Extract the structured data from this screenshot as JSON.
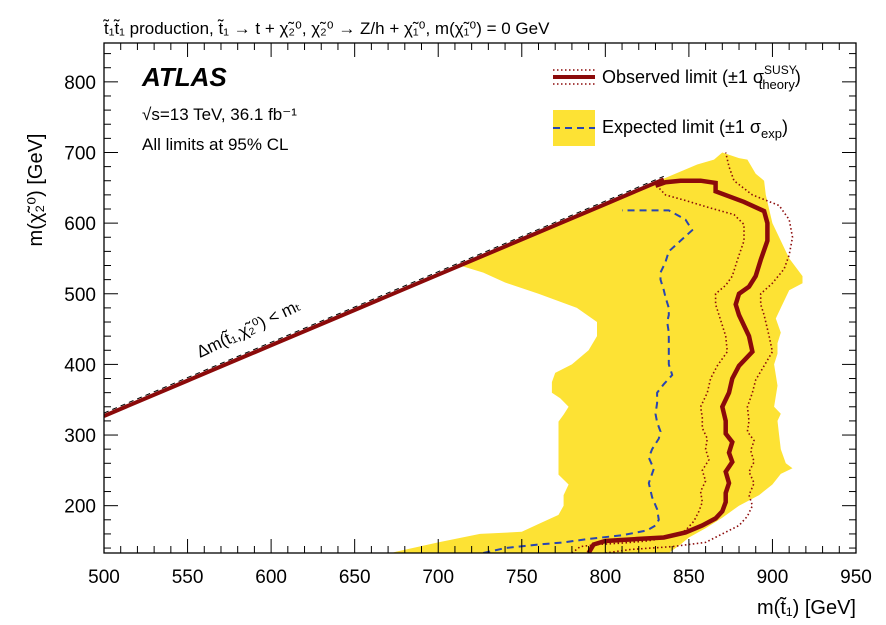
{
  "colors": {
    "expected_band": "#fde234",
    "expected_line": "#2945b0",
    "observed_line": "#8b0a0a",
    "observed_band_line": "#8b0a0a"
  },
  "chart_data": {
    "type": "area",
    "title": "t̃₁t̃₁ production, t̃₁ → t + χ̃₂⁰, χ̃₂⁰ → Z/h + χ̃₁⁰, m(χ̃₁⁰) = 0 GeV",
    "xlabel": "m(t̃₁) [GeV]",
    "ylabel": "m(χ̃₂⁰) [GeV]",
    "xlim": [
      500,
      950
    ],
    "ylim": [
      133,
      855
    ],
    "x_ticks": [
      500,
      550,
      600,
      650,
      700,
      750,
      800,
      850,
      900,
      950
    ],
    "y_ticks": [
      200,
      300,
      400,
      500,
      600,
      700,
      800
    ],
    "experiment": "ATLAS",
    "energy_lumi": "√s=13 TeV, 36.1 fb⁻¹",
    "cl_note": "All limits at 95% CL",
    "kinematic_label": "Δm(t̃₁,χ̃₂⁰) < mₜ",
    "legend": {
      "observed": "Observed limit (±1 σ",
      "observed_sigma": "theory",
      "observed_sup": "SUSY",
      "expected": "Expected limit (±1 σ",
      "expected_sigma": "exp",
      "position": "top-right"
    },
    "kinematic_boundary": [
      [
        500,
        327
      ],
      [
        550,
        377
      ],
      [
        600,
        427
      ],
      [
        650,
        477
      ],
      [
        700,
        527
      ],
      [
        750,
        577
      ],
      [
        800,
        627
      ],
      [
        835,
        662
      ]
    ],
    "expected_band_polygon": [
      [
        672,
        133
      ],
      [
        675,
        135
      ],
      [
        700,
        148
      ],
      [
        725,
        160
      ],
      [
        750,
        163
      ],
      [
        760,
        174
      ],
      [
        772,
        187
      ],
      [
        775,
        200
      ],
      [
        775,
        215
      ],
      [
        778,
        230
      ],
      [
        772,
        244
      ],
      [
        772,
        280
      ],
      [
        772,
        319
      ],
      [
        775,
        329
      ],
      [
        778,
        340
      ],
      [
        773,
        352
      ],
      [
        768,
        360
      ],
      [
        768,
        375
      ],
      [
        770,
        388
      ],
      [
        780,
        400
      ],
      [
        790,
        420
      ],
      [
        795,
        440
      ],
      [
        795,
        460
      ],
      [
        783,
        480
      ],
      [
        760,
        500
      ],
      [
        740,
        516
      ],
      [
        727,
        530
      ],
      [
        713,
        540
      ],
      [
        750,
        578
      ],
      [
        800,
        628
      ],
      [
        830,
        658
      ],
      [
        835,
        663
      ],
      [
        855,
        683
      ],
      [
        865,
        690
      ],
      [
        870,
        700
      ],
      [
        880,
        692
      ],
      [
        885,
        690
      ],
      [
        890,
        670
      ],
      [
        895,
        660
      ],
      [
        896,
        640
      ],
      [
        898,
        620
      ],
      [
        900,
        600
      ],
      [
        905,
        575
      ],
      [
        910,
        550
      ],
      [
        918,
        525
      ],
      [
        918,
        515
      ],
      [
        910,
        505
      ],
      [
        905,
        480
      ],
      [
        902,
        465
      ],
      [
        905,
        445
      ],
      [
        903,
        430
      ],
      [
        903,
        415
      ],
      [
        901,
        400
      ],
      [
        902,
        385
      ],
      [
        903,
        370
      ],
      [
        902,
        355
      ],
      [
        901,
        340
      ],
      [
        905,
        330
      ],
      [
        903,
        320
      ],
      [
        904,
        300
      ],
      [
        905,
        280
      ],
      [
        908,
        260
      ],
      [
        912,
        253
      ],
      [
        905,
        245
      ],
      [
        900,
        230
      ],
      [
        892,
        215
      ],
      [
        880,
        200
      ],
      [
        870,
        183
      ],
      [
        860,
        168
      ],
      [
        850,
        155
      ],
      [
        845,
        145
      ],
      [
        838,
        133
      ]
    ],
    "series": [
      {
        "name": "Expected limit (±1 σexp)",
        "style": "dashed",
        "points": [
          [
            727,
            133
          ],
          [
            740,
            140
          ],
          [
            760,
            145
          ],
          [
            775,
            148
          ],
          [
            790,
            153
          ],
          [
            810,
            158
          ],
          [
            825,
            165
          ],
          [
            830,
            172
          ],
          [
            832,
            180
          ],
          [
            831,
            195
          ],
          [
            828,
            212
          ],
          [
            826,
            232
          ],
          [
            829,
            252
          ],
          [
            826,
            268
          ],
          [
            828,
            280
          ],
          [
            832,
            295
          ],
          [
            833,
            305
          ],
          [
            831,
            318
          ],
          [
            830,
            330
          ],
          [
            831,
            345
          ],
          [
            831,
            360
          ],
          [
            835,
            372
          ],
          [
            840,
            385
          ],
          [
            838,
            400
          ],
          [
            838,
            415
          ],
          [
            838,
            430
          ],
          [
            838,
            445
          ],
          [
            837,
            460
          ],
          [
            838,
            470
          ],
          [
            838,
            480
          ],
          [
            836,
            495
          ],
          [
            835,
            505
          ],
          [
            833,
            520
          ],
          [
            833,
            530
          ],
          [
            836,
            545
          ],
          [
            838,
            560
          ],
          [
            845,
            575
          ],
          [
            852,
            590
          ],
          [
            848,
            605
          ],
          [
            838,
            618
          ],
          [
            810,
            618
          ]
        ]
      },
      {
        "name": "Observed limit (±1 σtheory SUSY)",
        "style": "solid",
        "points": [
          [
            790,
            133
          ],
          [
            793,
            145
          ],
          [
            800,
            150
          ],
          [
            820,
            153
          ],
          [
            835,
            155
          ],
          [
            848,
            162
          ],
          [
            858,
            172
          ],
          [
            866,
            182
          ],
          [
            870,
            192
          ],
          [
            872,
            205
          ],
          [
            872,
            218
          ],
          [
            874,
            232
          ],
          [
            872,
            248
          ],
          [
            876,
            262
          ],
          [
            874,
            275
          ],
          [
            876,
            290
          ],
          [
            872,
            302
          ],
          [
            872,
            320
          ],
          [
            870,
            340
          ],
          [
            874,
            360
          ],
          [
            876,
            380
          ],
          [
            880,
            398
          ],
          [
            888,
            418
          ],
          [
            886,
            440
          ],
          [
            880,
            470
          ],
          [
            878,
            485
          ],
          [
            880,
            500
          ],
          [
            886,
            510
          ],
          [
            890,
            525
          ],
          [
            893,
            548
          ],
          [
            897,
            575
          ],
          [
            897,
            600
          ],
          [
            895,
            617
          ],
          [
            883,
            630
          ],
          [
            866,
            645
          ],
          [
            866,
            657
          ],
          [
            857,
            660
          ],
          [
            845,
            660
          ],
          [
            836,
            658
          ],
          [
            830,
            653
          ]
        ]
      },
      {
        "name": "Observed limit +1σ theory",
        "style": "dotted",
        "points": [
          [
            800,
            133
          ],
          [
            815,
            138
          ],
          [
            840,
            142
          ],
          [
            860,
            148
          ],
          [
            870,
            160
          ],
          [
            880,
            172
          ],
          [
            885,
            185
          ],
          [
            888,
            200
          ],
          [
            886,
            215
          ],
          [
            889,
            232
          ],
          [
            886,
            248
          ],
          [
            889,
            262
          ],
          [
            887,
            278
          ],
          [
            889,
            292
          ],
          [
            885,
            305
          ],
          [
            886,
            320
          ],
          [
            885,
            340
          ],
          [
            888,
            360
          ],
          [
            890,
            378
          ],
          [
            895,
            398
          ],
          [
            900,
            418
          ],
          [
            898,
            440
          ],
          [
            895,
            470
          ],
          [
            893,
            485
          ],
          [
            893,
            500
          ],
          [
            900,
            515
          ],
          [
            907,
            535
          ],
          [
            910,
            555
          ],
          [
            912,
            580
          ],
          [
            910,
            605
          ],
          [
            904,
            625
          ],
          [
            888,
            640
          ],
          [
            877,
            660
          ],
          [
            874,
            680
          ],
          [
            872,
            700
          ]
        ]
      },
      {
        "name": "Observed limit -1σ theory",
        "style": "dotted",
        "points": [
          [
            780,
            133
          ],
          [
            785,
            142
          ],
          [
            795,
            145
          ],
          [
            810,
            147
          ],
          [
            825,
            150
          ],
          [
            838,
            155
          ],
          [
            848,
            165
          ],
          [
            853,
            178
          ],
          [
            856,
            192
          ],
          [
            858,
            205
          ],
          [
            857,
            220
          ],
          [
            860,
            235
          ],
          [
            858,
            250
          ],
          [
            862,
            265
          ],
          [
            860,
            280
          ],
          [
            861,
            295
          ],
          [
            858,
            310
          ],
          [
            858,
            325
          ],
          [
            857,
            340
          ],
          [
            861,
            360
          ],
          [
            863,
            380
          ],
          [
            867,
            398
          ],
          [
            873,
            418
          ],
          [
            872,
            440
          ],
          [
            868,
            470
          ],
          [
            866,
            485
          ],
          [
            866,
            500
          ],
          [
            872,
            512
          ],
          [
            876,
            525
          ],
          [
            879,
            548
          ],
          [
            883,
            575
          ],
          [
            883,
            598
          ],
          [
            877,
            612
          ],
          [
            862,
            622
          ],
          [
            848,
            632
          ],
          [
            836,
            640
          ],
          [
            832,
            650
          ]
        ]
      }
    ]
  }
}
